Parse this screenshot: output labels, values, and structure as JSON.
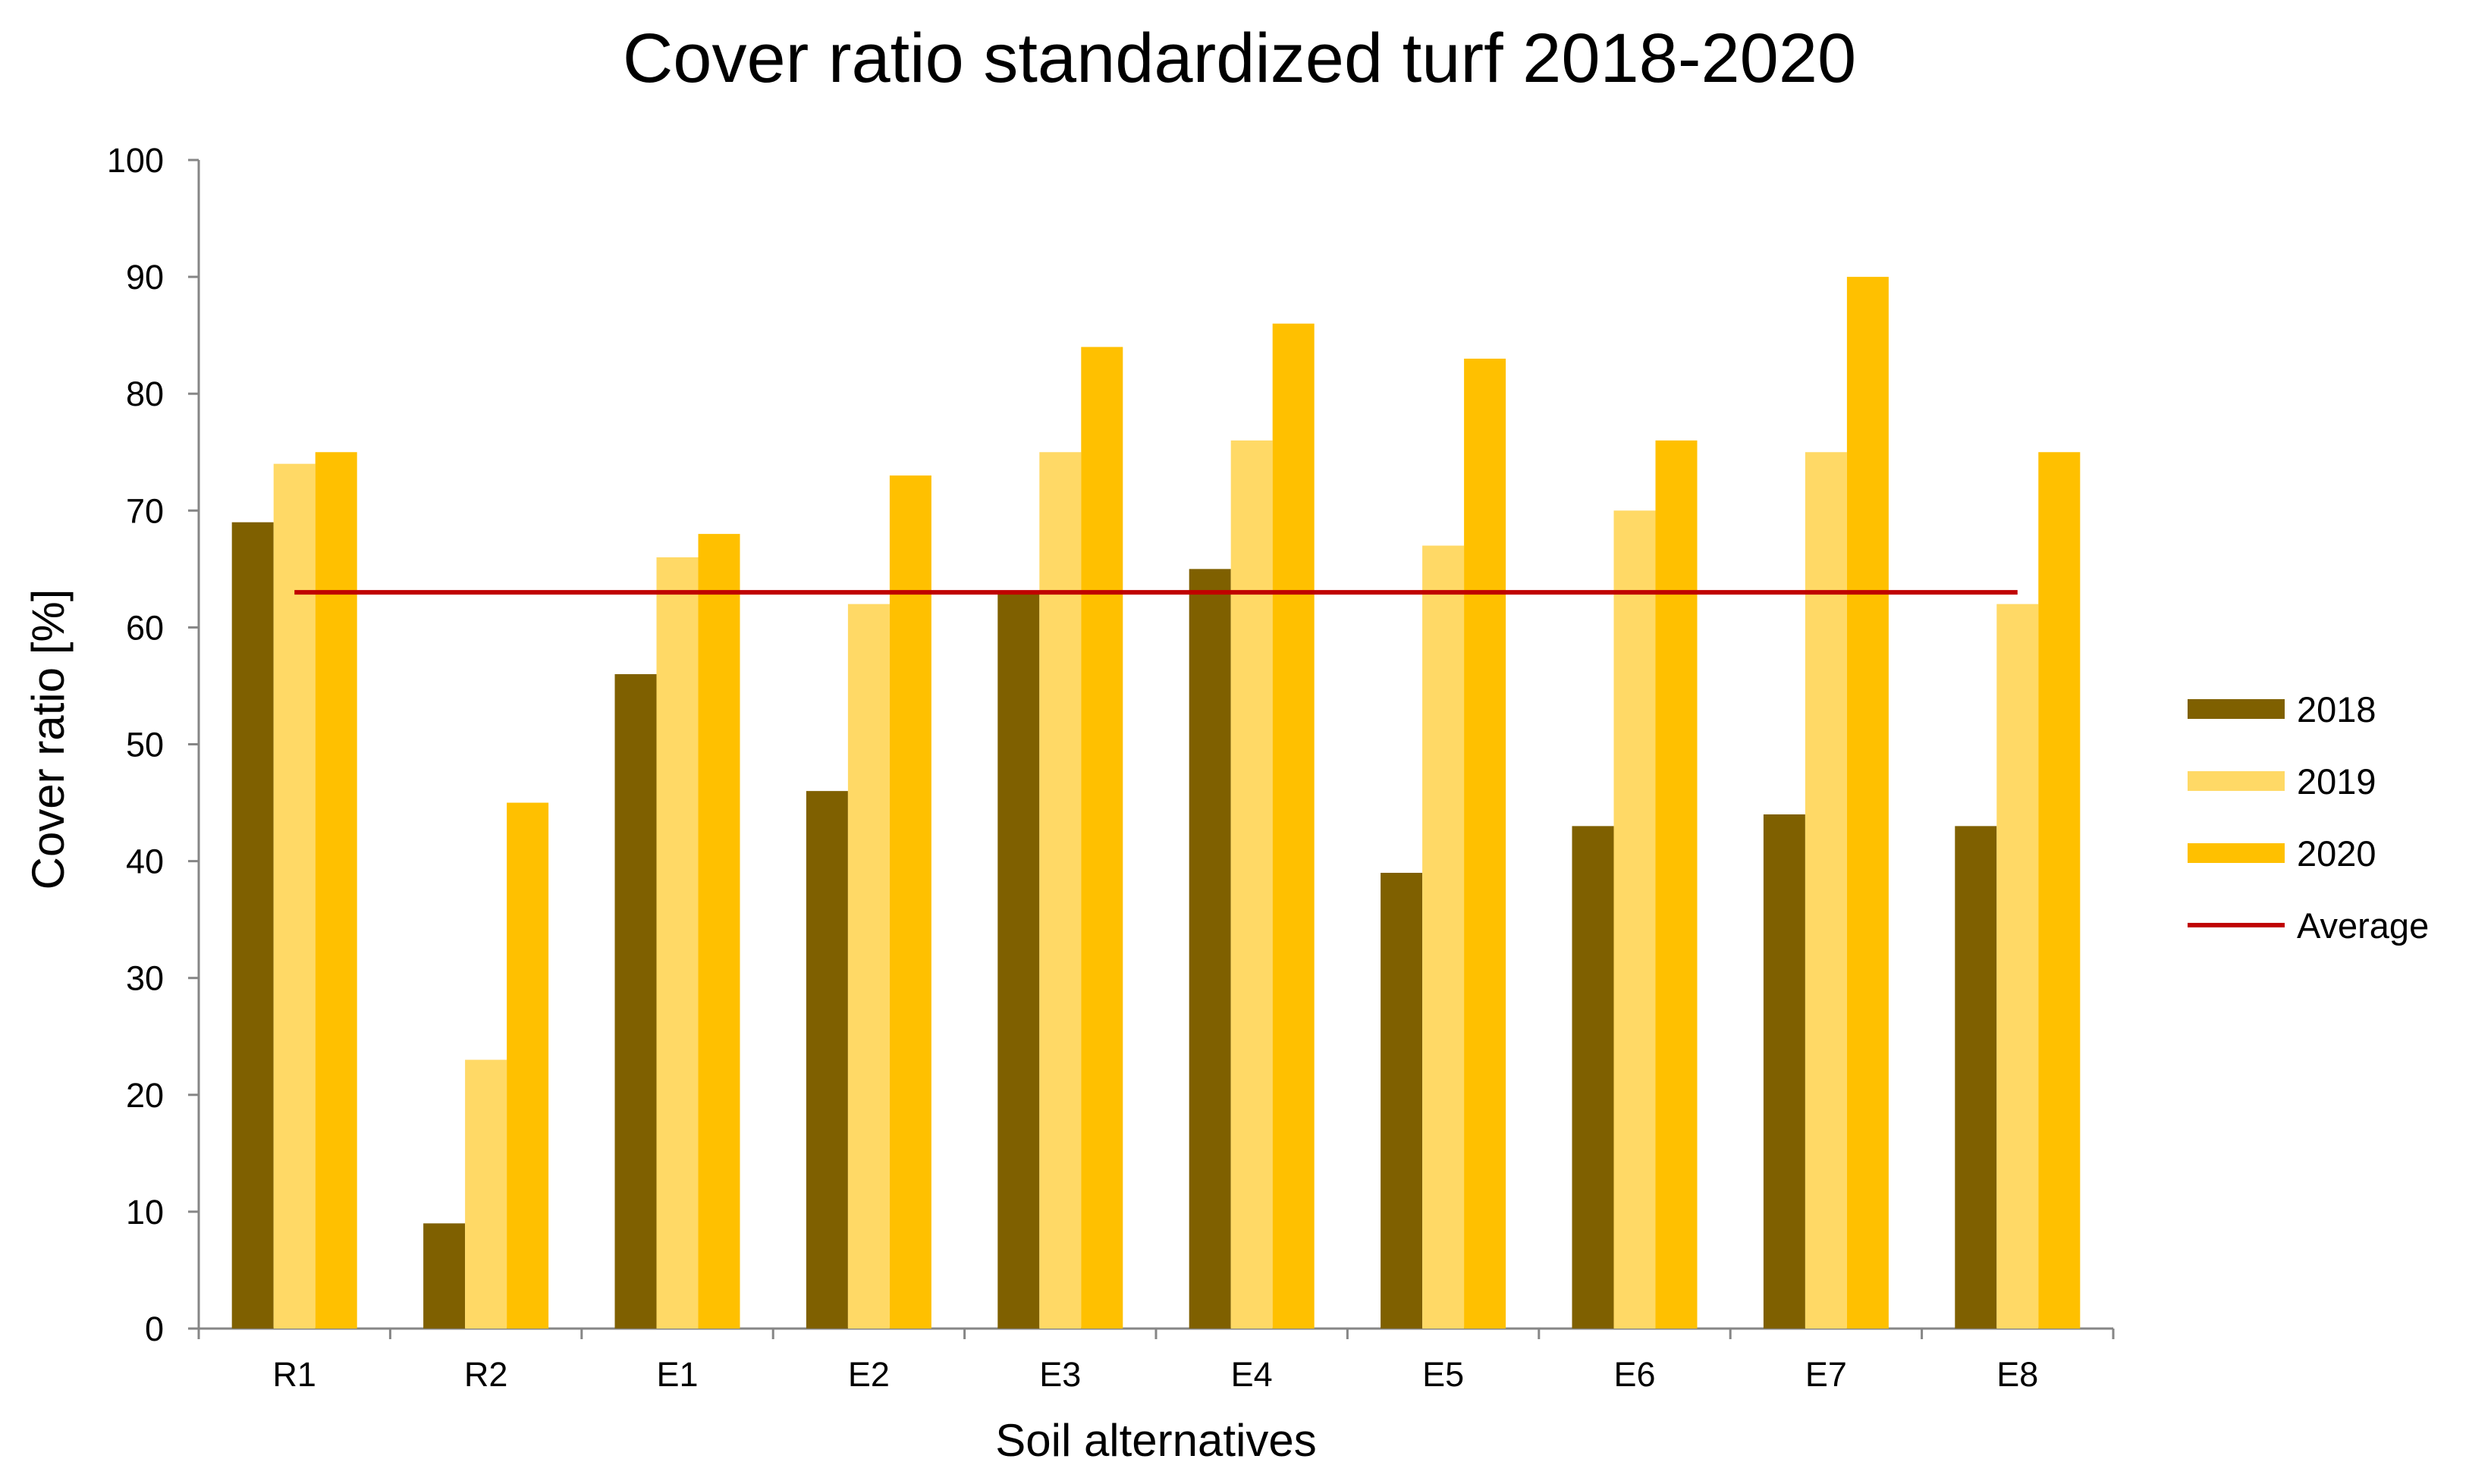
{
  "chart_data": {
    "type": "bar",
    "title": "Cover ratio standardized turf 2018-2020",
    "xlabel": "Soil alternatives",
    "ylabel": "Cover ratio [%]",
    "categories": [
      "R1",
      "R2",
      "E1",
      "E2",
      "E3",
      "E4",
      "E5",
      "E6",
      "E7",
      "E8"
    ],
    "series": [
      {
        "name": "2018",
        "color": "#7f6000",
        "values": [
          69,
          9,
          56,
          46,
          63,
          65,
          39,
          43,
          44,
          43
        ]
      },
      {
        "name": "2019",
        "color": "#ffd966",
        "values": [
          74,
          23,
          66,
          62,
          75,
          76,
          67,
          70,
          75,
          62
        ]
      },
      {
        "name": "2020",
        "color": "#ffc000",
        "values": [
          75,
          45,
          68,
          73,
          84,
          86,
          83,
          76,
          90,
          75
        ]
      }
    ],
    "average": {
      "name": "Average",
      "value": 63,
      "color": "#c00000"
    },
    "ylim": [
      0,
      100
    ],
    "yticks": [
      0,
      10,
      20,
      30,
      40,
      50,
      60,
      70,
      80,
      90,
      100
    ],
    "grid": false,
    "legend_position": "right"
  }
}
